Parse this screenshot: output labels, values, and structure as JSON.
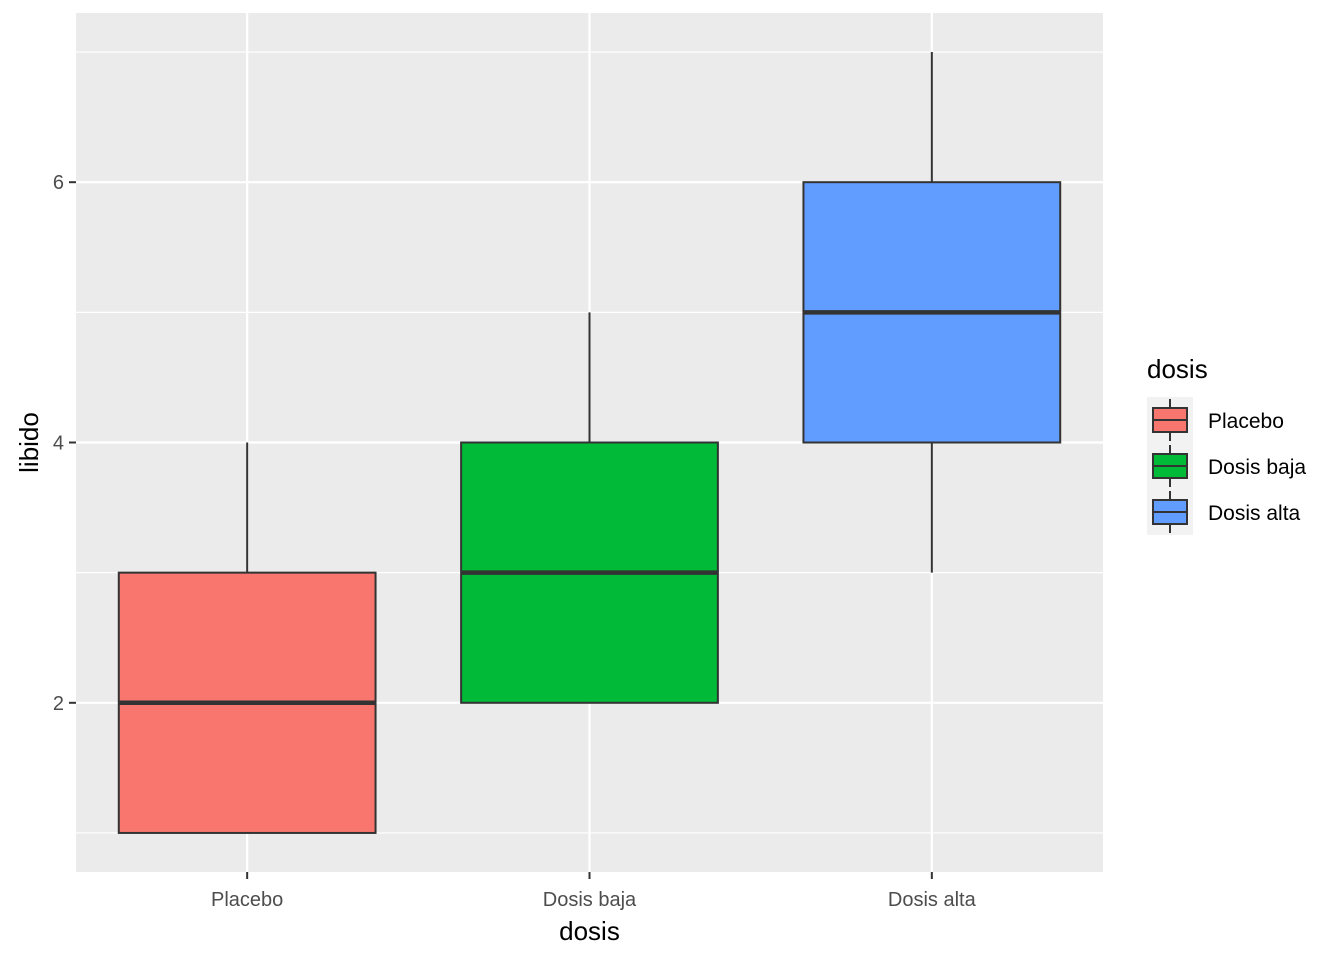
{
  "chart_data": {
    "type": "boxplot",
    "xlabel": "dosis",
    "ylabel": "libido",
    "categories": [
      "Placebo",
      "Dosis baja",
      "Dosis alta"
    ],
    "yticks": [
      2,
      4,
      6
    ],
    "ylim": [
      0.7,
      7.3
    ],
    "grid": true,
    "background_color": "#EBEBEB",
    "legend": {
      "title": "dosis",
      "position": "right",
      "labels": [
        "Placebo",
        "Dosis baja",
        "Dosis alta"
      ]
    },
    "boxes": [
      {
        "category": "Placebo",
        "min": 1,
        "q1": 1,
        "median": 2,
        "q3": 3,
        "max": 4,
        "color": "#F8766D"
      },
      {
        "category": "Dosis baja",
        "min": 2,
        "q1": 2,
        "median": 3,
        "q3": 4,
        "max": 5,
        "color": "#00BA38"
      },
      {
        "category": "Dosis alta",
        "min": 3,
        "q1": 4,
        "median": 5,
        "q3": 6,
        "max": 7,
        "color": "#619CFF"
      }
    ]
  }
}
